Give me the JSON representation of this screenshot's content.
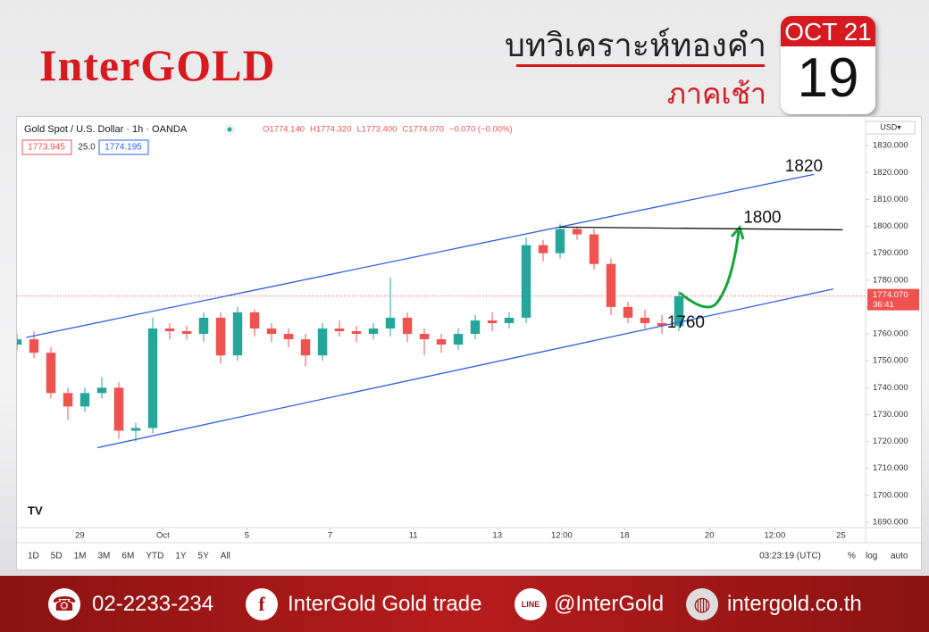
{
  "header": {
    "logo": "InterGOLD",
    "title": "บทวิเคราะห์ทองคำ",
    "subtitle": "ภาคเช้า",
    "date_month": "OCT 21",
    "date_day": "19"
  },
  "chart_data": {
    "type": "candlestick",
    "title": "Gold Spot / U.S. Dollar · 1h · OANDA",
    "ohlc_labels": [
      "O1774.140",
      "H1774.320",
      "L1773.400",
      "C1774.070",
      "−0.070 (−0.00%)"
    ],
    "bid": "1773.945",
    "spread": "25.0",
    "ask": "1774.195",
    "currency": "USD▾",
    "last_price": {
      "value": 1774.07,
      "label": "1774.070"
    },
    "countdown": "36:41",
    "x": [
      0,
      2,
      4,
      6,
      8,
      10,
      12,
      14,
      16,
      18,
      20,
      22,
      24,
      26,
      28,
      30,
      32,
      34,
      36,
      38,
      40,
      42,
      44,
      46,
      48,
      50,
      52,
      54,
      56,
      58,
      60,
      62,
      64,
      66,
      68,
      70,
      72,
      74,
      76,
      78
    ],
    "open": [
      1756,
      1758,
      1753,
      1738,
      1733,
      1738,
      1740,
      1724,
      1725,
      1762,
      1761,
      1760,
      1766,
      1752,
      1768,
      1762,
      1760,
      1758,
      1752,
      1762,
      1761,
      1760,
      1762,
      1766,
      1760,
      1758,
      1756,
      1760,
      1765,
      1764,
      1766,
      1793,
      1790,
      1799,
      1797,
      1786,
      1770,
      1766,
      1764,
      1763
    ],
    "high": [
      1760,
      1761,
      1755,
      1740,
      1740,
      1744,
      1742,
      1727,
      1766,
      1764,
      1763,
      1768,
      1768,
      1770,
      1769,
      1764,
      1762,
      1760,
      1764,
      1765,
      1763,
      1764,
      1781,
      1768,
      1762,
      1760,
      1762,
      1767,
      1768,
      1768,
      1796,
      1795,
      1801,
      1800,
      1799,
      1788,
      1772,
      1769,
      1767,
      1776
    ],
    "low": [
      1754,
      1751,
      1736,
      1728,
      1731,
      1736,
      1721,
      1720,
      1723,
      1758,
      1758,
      1757,
      1749,
      1750,
      1759,
      1757,
      1755,
      1748,
      1750,
      1759,
      1757,
      1758,
      1759,
      1757,
      1752,
      1753,
      1754,
      1758,
      1761,
      1762,
      1764,
      1787,
      1788,
      1795,
      1784,
      1767,
      1764,
      1762,
      1760,
      1761
    ],
    "close": [
      1758,
      1753,
      1738,
      1733,
      1738,
      1740,
      1724,
      1725,
      1762,
      1761,
      1760,
      1766,
      1752,
      1768,
      1762,
      1760,
      1758,
      1752,
      1762,
      1761,
      1760,
      1762,
      1766,
      1760,
      1758,
      1756,
      1760,
      1765,
      1764,
      1766,
      1793,
      1790,
      1799,
      1797,
      1786,
      1770,
      1766,
      1764,
      1763,
      1774
    ],
    "up_color": "#26a69a",
    "down_color": "#ef5350",
    "xlim": [
      0,
      100
    ],
    "xticks": [
      {
        "value": 7.4,
        "label": "29"
      },
      {
        "value": 17.2,
        "label": "Oct"
      },
      {
        "value": 27.1,
        "label": "5"
      },
      {
        "value": 36.9,
        "label": "7"
      },
      {
        "value": 46.7,
        "label": "11"
      },
      {
        "value": 56.6,
        "label": "13"
      },
      {
        "value": 64.2,
        "label": "12:00"
      },
      {
        "value": 71.6,
        "label": "18"
      },
      {
        "value": 81.6,
        "label": "20"
      },
      {
        "value": 89.3,
        "label": "12:00"
      },
      {
        "value": 97.1,
        "label": "25"
      }
    ],
    "ylim": [
      1688,
      1839
    ],
    "yticks": [
      {
        "value": 1690,
        "label": "1690.000"
      },
      {
        "value": 1700,
        "label": "1700.000"
      },
      {
        "value": 1710,
        "label": "1710.000"
      },
      {
        "value": 1720,
        "label": "1720.000"
      },
      {
        "value": 1730,
        "label": "1730.000"
      },
      {
        "value": 1740,
        "label": "1740.000"
      },
      {
        "value": 1750,
        "label": "1750.000"
      },
      {
        "value": 1760,
        "label": "1760.000"
      },
      {
        "value": 1770,
        "label": "1770.000"
      },
      {
        "value": 1780,
        "label": "1780.000"
      },
      {
        "value": 1790,
        "label": "1790.000"
      },
      {
        "value": 1800,
        "label": "1800.000"
      },
      {
        "value": 1810,
        "label": "1810.000"
      },
      {
        "value": 1820,
        "label": "1820.000"
      },
      {
        "value": 1830,
        "label": "1830.000"
      }
    ],
    "grid": false,
    "trendlines": [
      {
        "x": [
          1.1,
          93.9
        ],
        "y": [
          1758.7,
          1819.3
        ],
        "color": "#2f5fe0"
      },
      {
        "x": [
          9.5,
          96.2
        ],
        "y": [
          1717.7,
          1776.7
        ],
        "color": "#2f5fe0"
      },
      {
        "x": [
          63.9,
          97.3
        ],
        "y": [
          1799.7,
          1798.7
        ],
        "color": "#111111"
      }
    ],
    "annotations": [
      {
        "label": "1820",
        "x": 90.5,
        "y": 1822
      },
      {
        "label": "1800",
        "x": 85.6,
        "y": 1803
      },
      {
        "label": "1760",
        "x": 76.6,
        "y": 1764
      }
    ]
  },
  "toolbar": {
    "ranges": [
      "1D",
      "5D",
      "1M",
      "3M",
      "6M",
      "YTD",
      "1Y",
      "5Y",
      "All"
    ],
    "time": "03:23:19 (UTC)",
    "options": [
      "%",
      "log",
      "auto"
    ]
  },
  "footer": {
    "phone": "02-2233-234",
    "facebook": "InterGold Gold trade",
    "line": "@InterGold",
    "website": "intergold.co.th"
  }
}
